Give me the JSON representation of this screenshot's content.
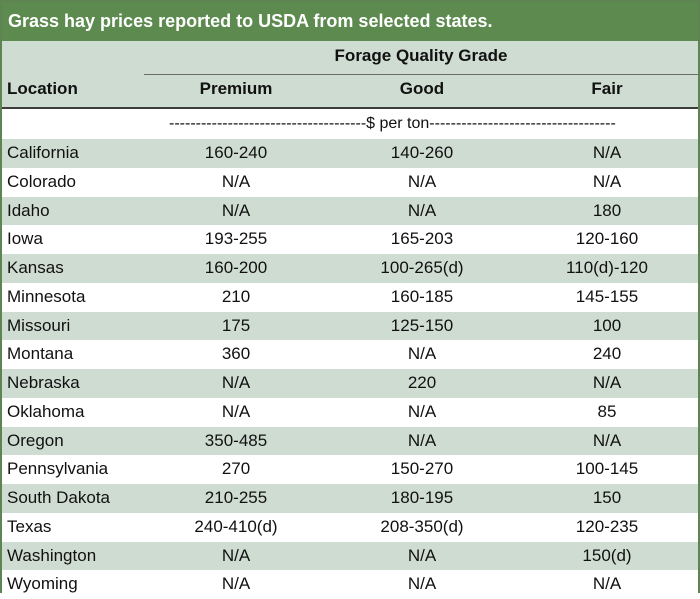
{
  "title": "Grass hay prices reported to USDA from selected states.",
  "header": {
    "location": "Location",
    "group": "Forage Quality Grade",
    "columns": [
      "Premium",
      "Good",
      "Fair"
    ]
  },
  "unit_line": "-------------------------------------$ per ton-----------------------------------",
  "rows": [
    {
      "location": "California",
      "premium": "160-240",
      "good": "140-260",
      "fair": "N/A"
    },
    {
      "location": "Colorado",
      "premium": "N/A",
      "good": "N/A",
      "fair": "N/A"
    },
    {
      "location": "Idaho",
      "premium": "N/A",
      "good": "N/A",
      "fair": "180"
    },
    {
      "location": "Iowa",
      "premium": "193-255",
      "good": "165-203",
      "fair": "120-160"
    },
    {
      "location": "Kansas",
      "premium": "160-200",
      "good": "100-265(d)",
      "fair": "110(d)-120"
    },
    {
      "location": "Minnesota",
      "premium": "210",
      "good": "160-185",
      "fair": "145-155"
    },
    {
      "location": "Missouri",
      "premium": "175",
      "good": "125-150",
      "fair": "100"
    },
    {
      "location": "Montana",
      "premium": "360",
      "good": "N/A",
      "fair": "240"
    },
    {
      "location": "Nebraska",
      "premium": "N/A",
      "good": "220",
      "fair": "N/A"
    },
    {
      "location": "Oklahoma",
      "premium": "N/A",
      "good": "N/A",
      "fair": "85"
    },
    {
      "location": "Oregon",
      "premium": "350-485",
      "good": "N/A",
      "fair": "N/A"
    },
    {
      "location": "Pennsylvania",
      "premium": "270",
      "good": "150-270",
      "fair": "100-145"
    },
    {
      "location": "South Dakota",
      "premium": "210-255",
      "good": "180-195",
      "fair": "150"
    },
    {
      "location": "Texas",
      "premium": "240-410(d)",
      "good": "208-350(d)",
      "fair": "120-235"
    },
    {
      "location": "Washington",
      "premium": "N/A",
      "good": "N/A",
      "fair": "150(d)"
    },
    {
      "location": "Wyoming",
      "premium": "N/A",
      "good": "N/A",
      "fair": "N/A"
    }
  ],
  "colors": {
    "title_bg": "#5c8a4f",
    "shade_row": "#cfdcd2",
    "border": "#5e8451"
  }
}
